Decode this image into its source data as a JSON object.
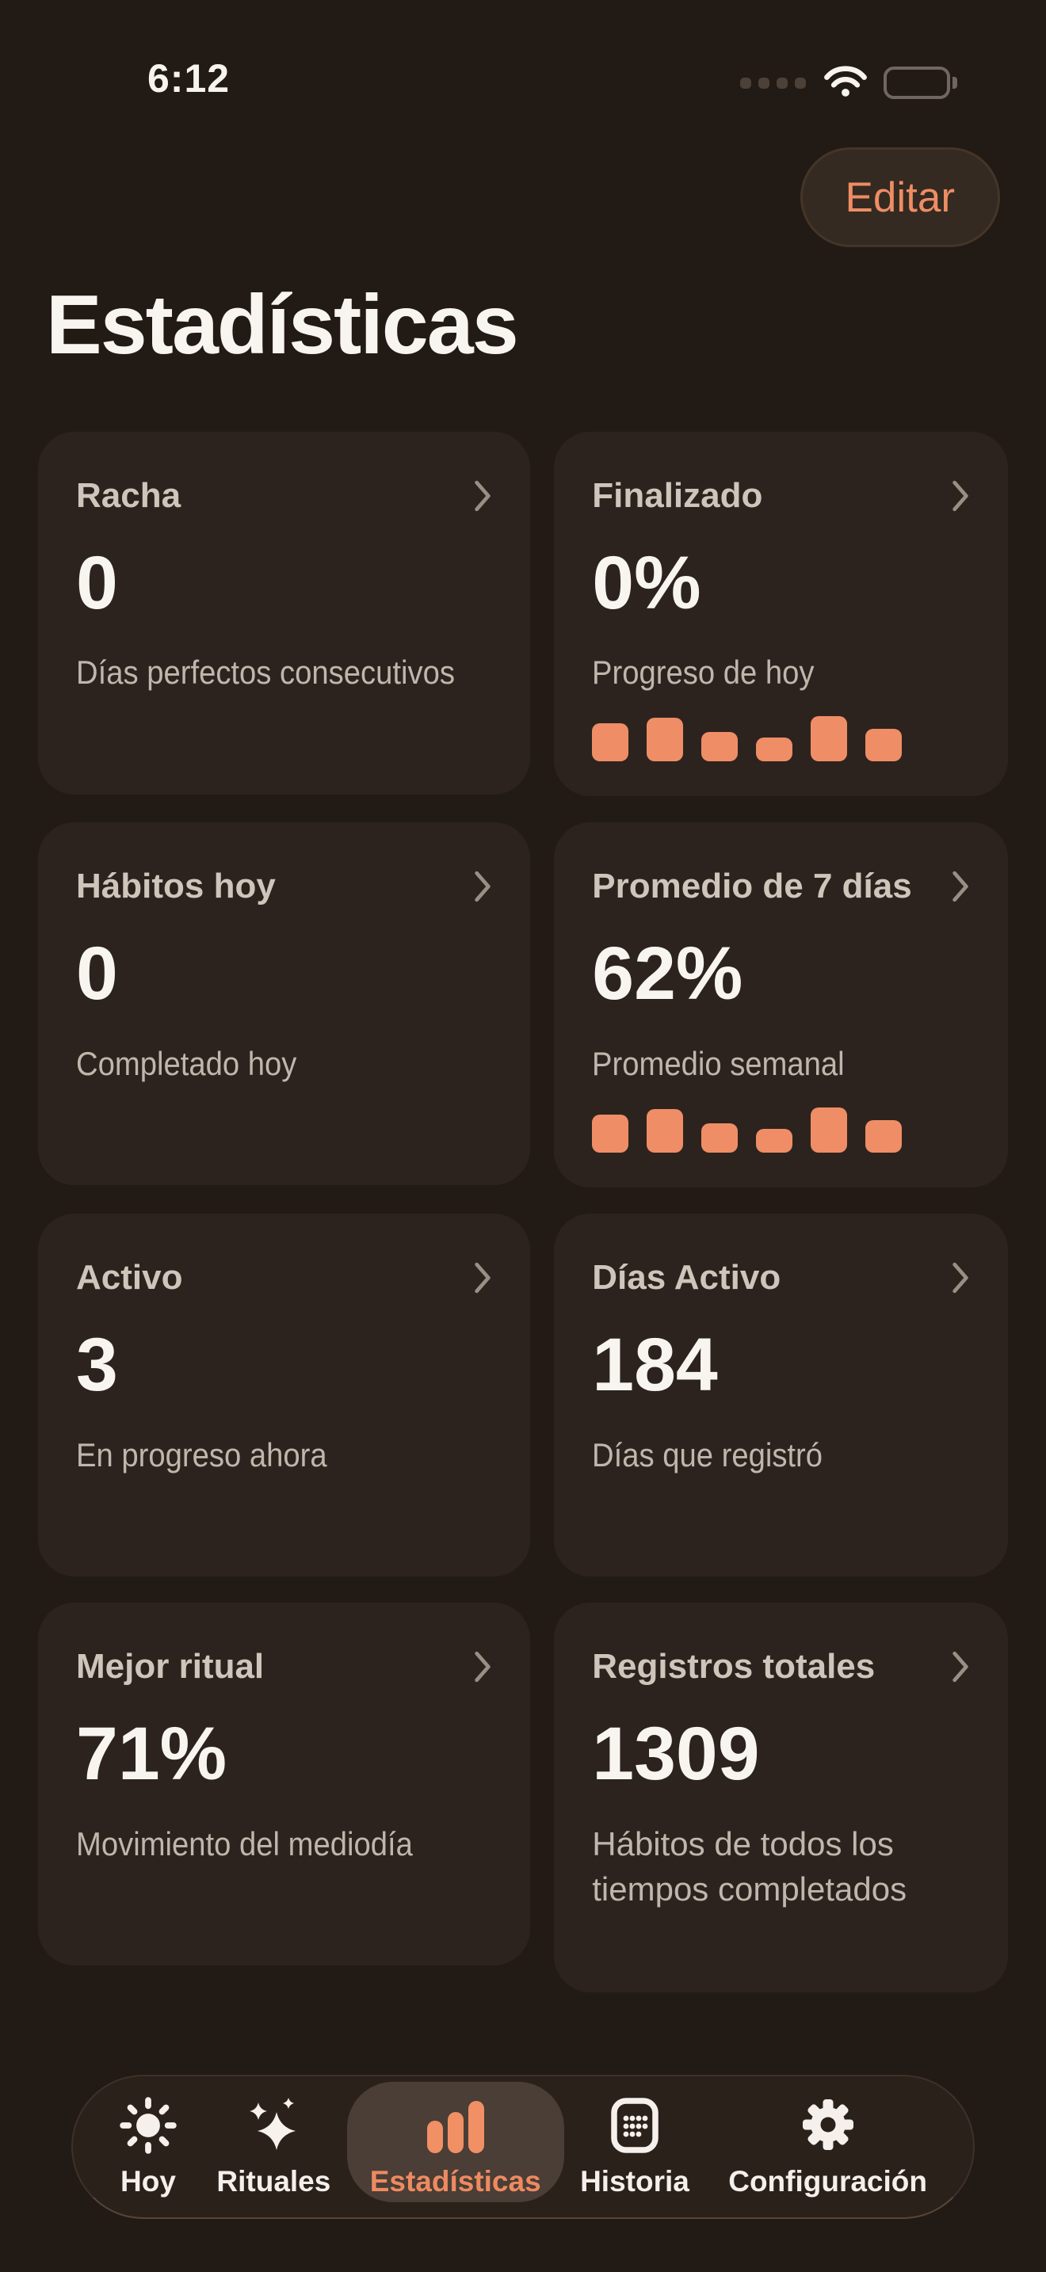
{
  "status_bar": {
    "time": "6:12",
    "icons": [
      "cellular-signal-dots",
      "wifi",
      "battery-full"
    ]
  },
  "header": {
    "edit_button_label": "Editar",
    "title": "Estadísticas"
  },
  "colors": {
    "accent_orange": "#EF8E66",
    "page_background": "#221A15",
    "card_background": "#2C231E",
    "tab_highlight": "#4A3E36"
  },
  "cards": [
    {
      "title": "Racha",
      "value": "0",
      "description": "Días perfectos consecutivos"
    },
    {
      "title": "Finalizado",
      "value": "0%",
      "description": "Progreso de hoy",
      "chart": {
        "type": "bar",
        "values": [
          48,
          55,
          37,
          30,
          57,
          41
        ]
      }
    },
    {
      "title": "Hábitos hoy",
      "value": "0",
      "description": "Completado hoy"
    },
    {
      "title": "Promedio de 7 días",
      "value": "62%",
      "description": "Promedio semanal",
      "chart": {
        "type": "bar",
        "values": [
          48,
          55,
          37,
          30,
          57,
          41
        ]
      }
    },
    {
      "title": "Activo",
      "value": "3",
      "description": "En progreso ahora"
    },
    {
      "title": "Días Activo",
      "value": "184",
      "description": "Días que registró"
    },
    {
      "title": "Mejor ritual",
      "value": "71%",
      "description": "Movimiento del mediodía"
    },
    {
      "title": "Registros totales",
      "value": "1309",
      "description": "Hábitos de todos los tiempos completados"
    }
  ],
  "tab_bar": {
    "tabs": [
      {
        "label": "Hoy",
        "icon": "sun-icon",
        "active": false
      },
      {
        "label": "Rituales",
        "icon": "sparkles-icon",
        "active": false
      },
      {
        "label": "Estadísticas",
        "icon": "bar-chart-icon",
        "active": true
      },
      {
        "label": "Historia",
        "icon": "calendar-icon",
        "active": false
      },
      {
        "label": "Configuración",
        "icon": "gear-icon",
        "active": false
      }
    ]
  }
}
